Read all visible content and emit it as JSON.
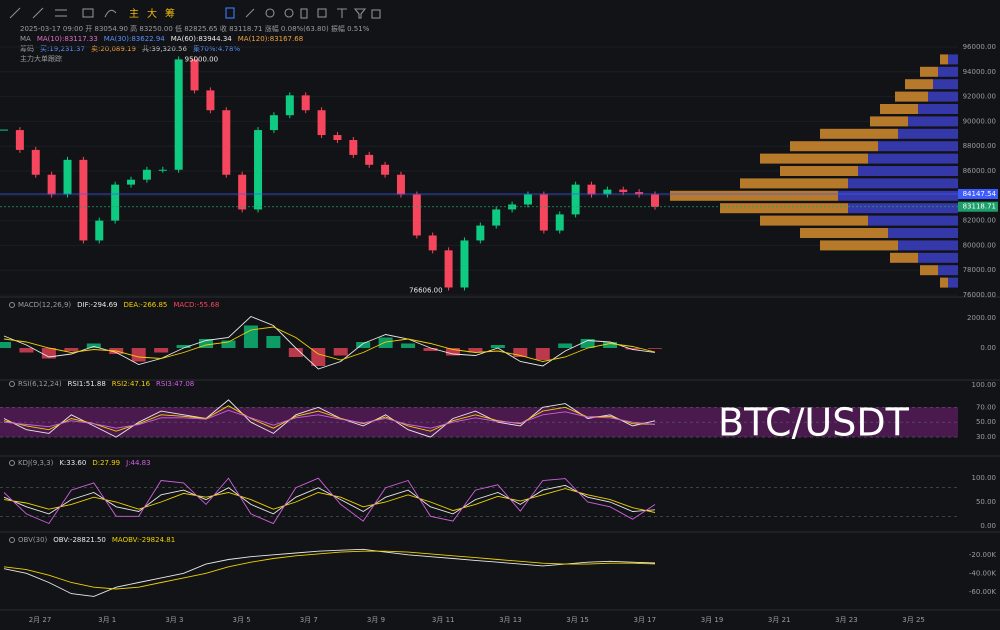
{
  "toolbar": {
    "buttons": [
      "主",
      "大",
      "筹"
    ]
  },
  "header": {
    "bar_info": "2025-03-17 09:00  开 83054.90  高 83250.00  低 82825.65  收 83118.71  涨幅 0.08%(63.80)  振幅 0.51%",
    "ma_label": "MA",
    "ma": [
      {
        "text": "MA(10):83117.33",
        "color": "#e06ec8"
      },
      {
        "text": "MA(30):83622.94",
        "color": "#5b8ff9"
      },
      {
        "text": "MA(60):83944.34",
        "color": "#e8e8e8"
      },
      {
        "text": "MA(120):83167.68",
        "color": "#f0a040"
      }
    ],
    "chip_label": "筹码",
    "chips": [
      {
        "text": "买:19,231.37",
        "color": "#5b8ff9"
      },
      {
        "text": "卖:20,089.19",
        "color": "#f0a040"
      },
      {
        "text": "共:39,320.56",
        "color": "#c8c8c8"
      },
      {
        "text": "集70%:4.78%",
        "color": "#5b8ff9"
      }
    ],
    "tracker": "主力大单跟踪"
  },
  "price": {
    "ylim": [
      76000,
      96000
    ],
    "yticks": [
      {
        "value": 96000,
        "label": "96000.00"
      },
      {
        "value": 94000,
        "label": "94000.00"
      },
      {
        "value": 92000,
        "label": "92000.00"
      },
      {
        "value": 90000,
        "label": "90000.00"
      },
      {
        "value": 88000,
        "label": "88000.00"
      },
      {
        "value": 86000,
        "label": "86000.00"
      },
      {
        "value": 84000,
        "label": "84000.00"
      },
      {
        "value": 82000,
        "label": "82000.00"
      },
      {
        "value": 80000,
        "label": "80000.00"
      },
      {
        "value": 78000,
        "label": "78000.00"
      },
      {
        "value": 76000,
        "label": "76000.00"
      }
    ],
    "values": [
      89300,
      87700,
      85700,
      84100,
      86900,
      80400,
      82000,
      84900,
      85300,
      86100,
      86100,
      95000,
      92500,
      90900,
      85700,
      82900,
      89300,
      90500,
      92100,
      90900,
      88900,
      88500,
      87300,
      86500,
      85700,
      84100,
      80800,
      79600,
      76606,
      80400,
      81600,
      82900,
      83300,
      84100,
      81200,
      82500,
      84900,
      84100,
      84500,
      84300,
      84100,
      83118.71
    ],
    "up_color": "#0ecb81",
    "down_color": "#f6465d",
    "high_label": {
      "value": 95000,
      "label": "95000.00"
    },
    "low_label": {
      "value": 76606,
      "label": "76606.00"
    },
    "price_lines": [
      {
        "value": 84147.54,
        "label": "84147.54",
        "color": "#3d5afe"
      },
      {
        "value": 83118.71,
        "label": "83118.71",
        "color": "#1e9e6a"
      }
    ],
    "volume_profile": {
      "levels": [
        95000,
        94000,
        93000,
        92000,
        91000,
        90000,
        89000,
        88000,
        87000,
        86000,
        85000,
        84000,
        83000,
        82000,
        81000,
        80000,
        79000,
        78000,
        77000
      ],
      "buy": [
        8,
        18,
        28,
        33,
        38,
        38,
        78,
        88,
        108,
        78,
        108,
        168,
        128,
        108,
        88,
        78,
        28,
        18,
        8
      ],
      "sell": [
        10,
        20,
        25,
        30,
        40,
        50,
        60,
        80,
        90,
        100,
        110,
        120,
        110,
        90,
        70,
        60,
        40,
        20,
        10
      ],
      "buy_color": "#b7792a",
      "sell_color": "#3438a8"
    }
  },
  "macd": {
    "label": "MACD(12,26,9)",
    "ylim": [
      -2000,
      3200
    ],
    "yticks": [
      {
        "value": 2000,
        "label": "2000.00"
      },
      {
        "value": 0,
        "label": "0.00"
      }
    ],
    "series": [
      {
        "name": "DIF:-294.69",
        "color": "#e8e8e8",
        "values": [
          800,
          200,
          -600,
          -400,
          100,
          -300,
          -1100,
          -700,
          0,
          500,
          700,
          2100,
          1500,
          0,
          -1400,
          -900,
          300,
          900,
          600,
          0,
          -400,
          -500,
          0,
          -900,
          -1200,
          -200,
          500,
          400,
          -100,
          -294.69
        ]
      },
      {
        "name": "DEA:-266.85",
        "color": "#f0d000",
        "values": [
          600,
          400,
          0,
          -300,
          -100,
          -200,
          -600,
          -700,
          -300,
          200,
          400,
          1200,
          1400,
          700,
          -400,
          -800,
          -300,
          400,
          600,
          300,
          -100,
          -300,
          -200,
          -500,
          -900,
          -600,
          0,
          300,
          100,
          -266.85
        ]
      }
    ],
    "histogram": {
      "name": "MACD:-55.68",
      "color": "#f6465d",
      "up_color": "#0ecb81",
      "down_color": "#f6465d",
      "values": [
        400,
        -300,
        -700,
        -200,
        300,
        -400,
        -900,
        -300,
        200,
        600,
        500,
        1500,
        800,
        -600,
        -1200,
        -500,
        400,
        700,
        300,
        -200,
        -500,
        -300,
        200,
        -600,
        -800,
        300,
        600,
        400,
        -100,
        -55.68
      ]
    }
  },
  "rsi": {
    "label": "RSI(6,12,24)",
    "ylim": [
      10,
      100
    ],
    "yticks": [
      {
        "value": 100,
        "label": "100.00"
      },
      {
        "value": 70,
        "label": "70.00"
      },
      {
        "value": 50,
        "label": "50.00"
      },
      {
        "value": 30,
        "label": "30.00"
      }
    ],
    "band": [
      30,
      70
    ],
    "band_color": "#4a1a4e",
    "reference_lines": [
      70,
      50,
      30
    ],
    "series": [
      {
        "name": "RSI1:51.88",
        "color": "#e8e8e8",
        "values": [
          55,
          40,
          35,
          60,
          45,
          30,
          50,
          65,
          60,
          55,
          80,
          50,
          35,
          60,
          70,
          55,
          45,
          60,
          40,
          30,
          55,
          65,
          50,
          45,
          70,
          75,
          55,
          60,
          45,
          51.88
        ]
      },
      {
        "name": "RSI2:47.16",
        "color": "#f0d000",
        "values": [
          52,
          45,
          40,
          55,
          48,
          38,
          48,
          60,
          58,
          55,
          72,
          55,
          42,
          58,
          65,
          55,
          48,
          57,
          45,
          38,
          52,
          60,
          52,
          48,
          65,
          70,
          57,
          58,
          48,
          47.16
        ]
      },
      {
        "name": "RSI3:47.08",
        "color": "#d060e0",
        "values": [
          50,
          47,
          44,
          52,
          48,
          42,
          47,
          56,
          56,
          54,
          66,
          56,
          46,
          56,
          60,
          54,
          49,
          55,
          47,
          42,
          50,
          56,
          51,
          49,
          60,
          64,
          57,
          56,
          50,
          47.08
        ]
      }
    ]
  },
  "kdj": {
    "label": "KDJ(9,3,3)",
    "ylim": [
      -15,
      115
    ],
    "yticks": [
      {
        "value": 100,
        "label": "100.00"
      },
      {
        "value": 50,
        "label": "50.00"
      },
      {
        "value": 0,
        "label": "0.00"
      }
    ],
    "reference_lines": [
      80,
      20
    ],
    "series": [
      {
        "name": "K:33.60",
        "color": "#e8e8e8",
        "values": [
          60,
          40,
          25,
          55,
          70,
          40,
          30,
          65,
          75,
          55,
          80,
          45,
          25,
          60,
          80,
          55,
          30,
          60,
          75,
          40,
          25,
          55,
          70,
          45,
          75,
          85,
          60,
          50,
          30,
          33.6
        ]
      },
      {
        "name": "D:27.99",
        "color": "#f0d000",
        "values": [
          55,
          48,
          35,
          45,
          60,
          50,
          35,
          50,
          68,
          60,
          70,
          55,
          35,
          50,
          70,
          60,
          40,
          50,
          65,
          50,
          32,
          45,
          62,
          52,
          65,
          78,
          65,
          55,
          38,
          27.99
        ]
      },
      {
        "name": "J:44.83",
        "color": "#d060e0",
        "values": [
          70,
          25,
          5,
          75,
          90,
          20,
          20,
          95,
          90,
          45,
          100,
          25,
          5,
          80,
          100,
          45,
          10,
          80,
          95,
          20,
          10,
          75,
          86,
          31,
          95,
          99,
          50,
          40,
          14,
          44.83
        ]
      }
    ]
  },
  "obv": {
    "label": "OBV(30)",
    "ylim": [
      -70000,
      -5000
    ],
    "yticks": [
      {
        "value": -20000,
        "label": "-20.00K"
      },
      {
        "value": -40000,
        "label": "-40.00K"
      },
      {
        "value": -60000,
        "label": "-60.00K"
      }
    ],
    "series": [
      {
        "name": "OBV:-28821.50",
        "color": "#e8e8e8",
        "values": [
          -35000,
          -40000,
          -50000,
          -62000,
          -65000,
          -55000,
          -50000,
          -45000,
          -40000,
          -30000,
          -25000,
          -22000,
          -20000,
          -18000,
          -16000,
          -15000,
          -14000,
          -17000,
          -20000,
          -22000,
          -24000,
          -26000,
          -28000,
          -30000,
          -32000,
          -30000,
          -28000,
          -27000,
          -28000,
          -28821.5
        ]
      },
      {
        "name": "MAOBV:-29824.81",
        "color": "#f0d000",
        "values": [
          -33000,
          -36000,
          -42000,
          -50000,
          -55000,
          -57000,
          -55000,
          -50000,
          -45000,
          -40000,
          -33000,
          -28000,
          -24000,
          -21000,
          -19000,
          -17000,
          -16000,
          -16000,
          -17000,
          -19000,
          -21000,
          -23000,
          -25000,
          -27000,
          -29000,
          -30000,
          -30000,
          -29000,
          -29000,
          -29824.81
        ]
      }
    ]
  },
  "dates": [
    "2月 27",
    "3月 1",
    "3月 3",
    "3月 5",
    "3月 7",
    "3月 9",
    "3月 11",
    "3月 13",
    "3月 15",
    "3月 17",
    "3月 19",
    "3月 21",
    "3月 23",
    "3月 25"
  ],
  "watermark": "BTC/USDT"
}
